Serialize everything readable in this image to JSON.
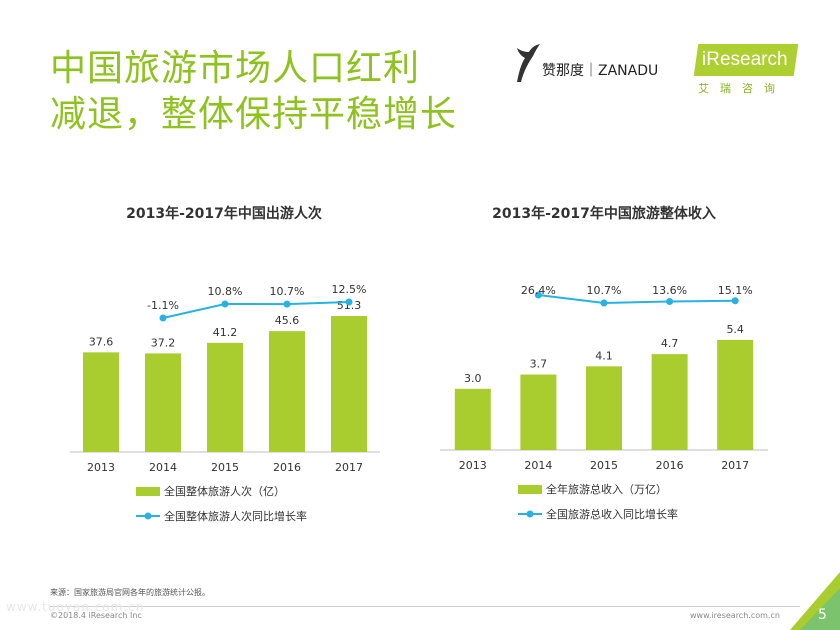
{
  "title": {
    "line1": "中国旅游市场人口红利",
    "line2": "减退，整体保持平稳增长"
  },
  "logos": {
    "zanadu": "赞那度｜ZANADU",
    "iresearch": "iResearch",
    "iresearch_cn": "艾瑞咨询"
  },
  "colors": {
    "bar": "#a9cc2e",
    "line": "#28b2e2",
    "title": "#8dc21f"
  },
  "chart_data": [
    {
      "type": "bar",
      "title": "2013年-2017年中国出游人次",
      "categories": [
        "2013",
        "2014",
        "2015",
        "2016",
        "2017"
      ],
      "values": [
        37.6,
        37.2,
        41.2,
        45.6,
        51.3
      ],
      "value_labels": [
        "37.6",
        "37.2",
        "41.2",
        "45.6",
        "51.3"
      ],
      "line_values": [
        null,
        -1.1,
        10.8,
        10.7,
        12.5
      ],
      "line_labels": [
        "",
        "-1.1%",
        "10.8%",
        "10.7%",
        "12.5%"
      ],
      "legend": [
        "全国整体旅游人次（亿）",
        "全国整体旅游人次同比增长率"
      ]
    },
    {
      "type": "bar",
      "title": "2013年-2017年中国旅游整体收入",
      "categories": [
        "2013",
        "2014",
        "2015",
        "2016",
        "2017"
      ],
      "values": [
        3.0,
        3.7,
        4.1,
        4.7,
        5.4
      ],
      "value_labels": [
        "3.0",
        "3.7",
        "4.1",
        "4.7",
        "5.4"
      ],
      "line_values": [
        null,
        26.4,
        10.7,
        13.6,
        15.1
      ],
      "line_labels": [
        "",
        "26.4%",
        "10.7%",
        "13.6%",
        "15.1%"
      ],
      "legend": [
        "全年旅游总收入（万亿）",
        "全国旅游总收入同比增长率"
      ]
    }
  ],
  "footer": {
    "source": "来源：国家旅游局官网各年的旅游统计公报。",
    "copyright": "©2018.4 iResearch Inc",
    "url": "www.iresearch.com.cn",
    "page": "5",
    "watermark": "www.tuoyan.com.cn"
  }
}
